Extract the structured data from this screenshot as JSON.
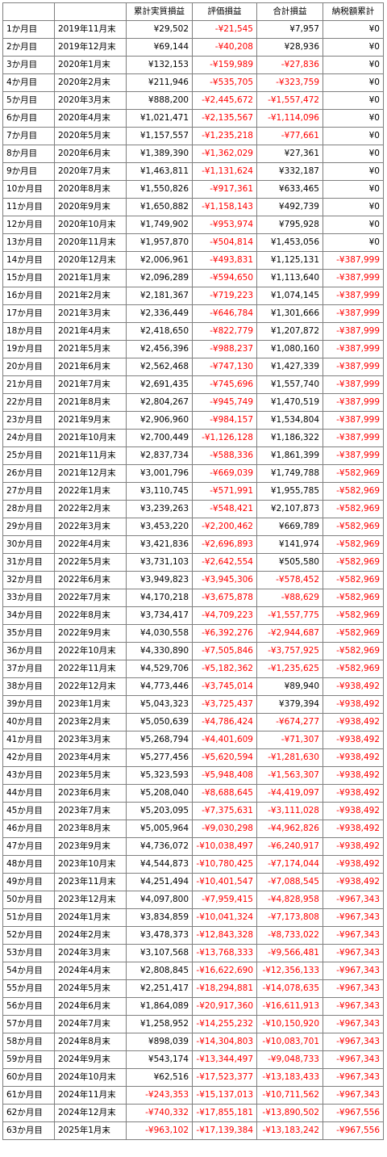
{
  "table": {
    "headers": [
      "",
      "",
      "累計実質損益",
      "評価損益",
      "合計損益",
      "納税額累計"
    ],
    "negative_color": "#ff0000",
    "rows": [
      [
        "1か月目",
        "2019年11月末",
        "¥29,502",
        "-¥21,545",
        "¥7,957",
        "¥0"
      ],
      [
        "2か月目",
        "2019年12月末",
        "¥69,144",
        "-¥40,208",
        "¥28,936",
        "¥0"
      ],
      [
        "3か月目",
        "2020年1月末",
        "¥132,153",
        "-¥159,989",
        "-¥27,836",
        "¥0"
      ],
      [
        "4か月目",
        "2020年2月末",
        "¥211,946",
        "-¥535,705",
        "-¥323,759",
        "¥0"
      ],
      [
        "5か月目",
        "2020年3月末",
        "¥888,200",
        "-¥2,445,672",
        "-¥1,557,472",
        "¥0"
      ],
      [
        "6か月目",
        "2020年4月末",
        "¥1,021,471",
        "-¥2,135,567",
        "-¥1,114,096",
        "¥0"
      ],
      [
        "7か月目",
        "2020年5月末",
        "¥1,157,557",
        "-¥1,235,218",
        "-¥77,661",
        "¥0"
      ],
      [
        "8か月目",
        "2020年6月末",
        "¥1,389,390",
        "-¥1,362,029",
        "¥27,361",
        "¥0"
      ],
      [
        "9か月目",
        "2020年7月末",
        "¥1,463,811",
        "-¥1,131,624",
        "¥332,187",
        "¥0"
      ],
      [
        "10か月目",
        "2020年8月末",
        "¥1,550,826",
        "-¥917,361",
        "¥633,465",
        "¥0"
      ],
      [
        "11か月目",
        "2020年9月末",
        "¥1,650,882",
        "-¥1,158,143",
        "¥492,739",
        "¥0"
      ],
      [
        "12か月目",
        "2020年10月末",
        "¥1,749,902",
        "-¥953,974",
        "¥795,928",
        "¥0"
      ],
      [
        "13か月目",
        "2020年11月末",
        "¥1,957,870",
        "-¥504,814",
        "¥1,453,056",
        "¥0"
      ],
      [
        "14か月目",
        "2020年12月末",
        "¥2,006,961",
        "-¥493,831",
        "¥1,125,131",
        "-¥387,999"
      ],
      [
        "15か月目",
        "2021年1月末",
        "¥2,096,289",
        "-¥594,650",
        "¥1,113,640",
        "-¥387,999"
      ],
      [
        "16か月目",
        "2021年2月末",
        "¥2,181,367",
        "-¥719,223",
        "¥1,074,145",
        "-¥387,999"
      ],
      [
        "17か月目",
        "2021年3月末",
        "¥2,336,449",
        "-¥646,784",
        "¥1,301,666",
        "-¥387,999"
      ],
      [
        "18か月目",
        "2021年4月末",
        "¥2,418,650",
        "-¥822,779",
        "¥1,207,872",
        "-¥387,999"
      ],
      [
        "19か月目",
        "2021年5月末",
        "¥2,456,396",
        "-¥988,237",
        "¥1,080,160",
        "-¥387,999"
      ],
      [
        "20か月目",
        "2021年6月末",
        "¥2,562,468",
        "-¥747,130",
        "¥1,427,339",
        "-¥387,999"
      ],
      [
        "21か月目",
        "2021年7月末",
        "¥2,691,435",
        "-¥745,696",
        "¥1,557,740",
        "-¥387,999"
      ],
      [
        "22か月目",
        "2021年8月末",
        "¥2,804,267",
        "-¥945,749",
        "¥1,470,519",
        "-¥387,999"
      ],
      [
        "23か月目",
        "2021年9月末",
        "¥2,906,960",
        "-¥984,157",
        "¥1,534,804",
        "-¥387,999"
      ],
      [
        "24か月目",
        "2021年10月末",
        "¥2,700,449",
        "-¥1,126,128",
        "¥1,186,322",
        "-¥387,999"
      ],
      [
        "25か月目",
        "2021年11月末",
        "¥2,837,734",
        "-¥588,336",
        "¥1,861,399",
        "-¥387,999"
      ],
      [
        "26か月目",
        "2021年12月末",
        "¥3,001,796",
        "-¥669,039",
        "¥1,749,788",
        "-¥582,969"
      ],
      [
        "27か月目",
        "2022年1月末",
        "¥3,110,745",
        "-¥571,991",
        "¥1,955,785",
        "-¥582,969"
      ],
      [
        "28か月目",
        "2022年2月末",
        "¥3,239,263",
        "-¥548,421",
        "¥2,107,873",
        "-¥582,969"
      ],
      [
        "29か月目",
        "2022年3月末",
        "¥3,453,220",
        "-¥2,200,462",
        "¥669,789",
        "-¥582,969"
      ],
      [
        "30か月目",
        "2022年4月末",
        "¥3,421,836",
        "-¥2,696,893",
        "¥141,974",
        "-¥582,969"
      ],
      [
        "31か月目",
        "2022年5月末",
        "¥3,731,103",
        "-¥2,642,554",
        "¥505,580",
        "-¥582,969"
      ],
      [
        "32か月目",
        "2022年6月末",
        "¥3,949,823",
        "-¥3,945,306",
        "-¥578,452",
        "-¥582,969"
      ],
      [
        "33か月目",
        "2022年7月末",
        "¥4,170,218",
        "-¥3,675,878",
        "-¥88,629",
        "-¥582,969"
      ],
      [
        "34か月目",
        "2022年8月末",
        "¥3,734,417",
        "-¥4,709,223",
        "-¥1,557,775",
        "-¥582,969"
      ],
      [
        "35か月目",
        "2022年9月末",
        "¥4,030,558",
        "-¥6,392,276",
        "-¥2,944,687",
        "-¥582,969"
      ],
      [
        "36か月目",
        "2022年10月末",
        "¥4,330,890",
        "-¥7,505,846",
        "-¥3,757,925",
        "-¥582,969"
      ],
      [
        "37か月目",
        "2022年11月末",
        "¥4,529,706",
        "-¥5,182,362",
        "-¥1,235,625",
        "-¥582,969"
      ],
      [
        "38か月目",
        "2022年12月末",
        "¥4,773,446",
        "-¥3,745,014",
        "¥89,940",
        "-¥938,492"
      ],
      [
        "39か月目",
        "2023年1月末",
        "¥5,043,323",
        "-¥3,725,437",
        "¥379,394",
        "-¥938,492"
      ],
      [
        "40か月目",
        "2023年2月末",
        "¥5,050,639",
        "-¥4,786,424",
        "-¥674,277",
        "-¥938,492"
      ],
      [
        "41か月目",
        "2023年3月末",
        "¥5,268,794",
        "-¥4,401,609",
        "-¥71,307",
        "-¥938,492"
      ],
      [
        "42か月目",
        "2023年4月末",
        "¥5,277,456",
        "-¥5,620,594",
        "-¥1,281,630",
        "-¥938,492"
      ],
      [
        "43か月目",
        "2023年5月末",
        "¥5,323,593",
        "-¥5,948,408",
        "-¥1,563,307",
        "-¥938,492"
      ],
      [
        "44か月目",
        "2023年6月末",
        "¥5,208,040",
        "-¥8,688,645",
        "-¥4,419,097",
        "-¥938,492"
      ],
      [
        "45か月目",
        "2023年7月末",
        "¥5,203,095",
        "-¥7,375,631",
        "-¥3,111,028",
        "-¥938,492"
      ],
      [
        "46か月目",
        "2023年8月末",
        "¥5,005,964",
        "-¥9,030,298",
        "-¥4,962,826",
        "-¥938,492"
      ],
      [
        "47か月目",
        "2023年9月末",
        "¥4,736,072",
        "-¥10,038,497",
        "-¥6,240,917",
        "-¥938,492"
      ],
      [
        "48か月目",
        "2023年10月末",
        "¥4,544,873",
        "-¥10,780,425",
        "-¥7,174,044",
        "-¥938,492"
      ],
      [
        "49か月目",
        "2023年11月末",
        "¥4,251,494",
        "-¥10,401,547",
        "-¥7,088,545",
        "-¥938,492"
      ],
      [
        "50か月目",
        "2023年12月末",
        "¥4,097,800",
        "-¥7,959,415",
        "-¥4,828,958",
        "-¥967,343"
      ],
      [
        "51か月目",
        "2024年1月末",
        "¥3,834,859",
        "-¥10,041,324",
        "-¥7,173,808",
        "-¥967,343"
      ],
      [
        "52か月目",
        "2024年2月末",
        "¥3,478,373",
        "-¥12,843,328",
        "-¥8,733,022",
        "-¥967,343"
      ],
      [
        "53か月目",
        "2024年3月末",
        "¥3,107,568",
        "-¥13,768,333",
        "-¥9,566,481",
        "-¥967,343"
      ],
      [
        "54か月目",
        "2024年4月末",
        "¥2,808,845",
        "-¥16,622,690",
        "-¥12,356,133",
        "-¥967,343"
      ],
      [
        "55か月目",
        "2024年5月末",
        "¥2,251,417",
        "-¥18,294,881",
        "-¥14,078,635",
        "-¥967,343"
      ],
      [
        "56か月目",
        "2024年6月末",
        "¥1,864,089",
        "-¥20,917,360",
        "-¥16,611,913",
        "-¥967,343"
      ],
      [
        "57か月目",
        "2024年7月末",
        "¥1,258,952",
        "-¥14,255,232",
        "-¥10,150,920",
        "-¥967,343"
      ],
      [
        "58か月目",
        "2024年8月末",
        "¥898,039",
        "-¥14,304,803",
        "-¥10,083,701",
        "-¥967,343"
      ],
      [
        "59か月目",
        "2024年9月末",
        "¥543,174",
        "-¥13,344,497",
        "-¥9,048,733",
        "-¥967,343"
      ],
      [
        "60か月目",
        "2024年10月末",
        "¥62,516",
        "-¥17,523,377",
        "-¥13,183,433",
        "-¥967,343"
      ],
      [
        "61か月目",
        "2024年11月末",
        "-¥243,353",
        "-¥15,137,013",
        "-¥10,711,562",
        "-¥967,343"
      ],
      [
        "62か月目",
        "2024年12月末",
        "-¥740,332",
        "-¥17,855,181",
        "-¥13,890,502",
        "-¥967,556"
      ],
      [
        "63か月目",
        "2025年1月末",
        "-¥963,102",
        "-¥17,139,384",
        "-¥13,183,242",
        "-¥967,556"
      ]
    ]
  }
}
